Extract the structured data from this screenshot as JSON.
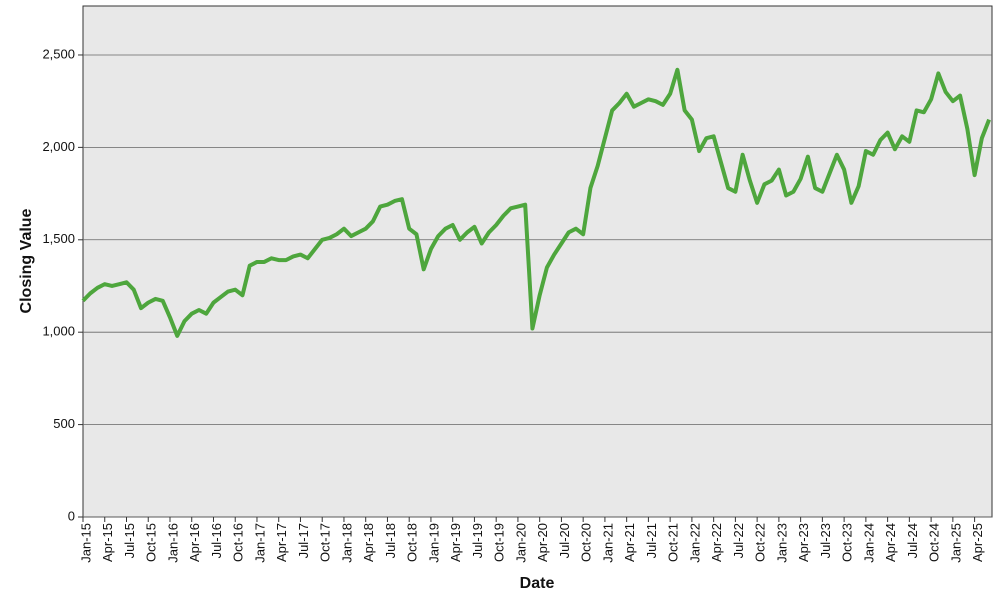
{
  "chart_data": {
    "type": "line",
    "x_label": "Date",
    "y_label": "Closing Value",
    "color": "#4ea63d",
    "grid": true,
    "ylim": [
      0,
      2765
    ],
    "yticks": [
      0,
      500,
      {
        "value": 1000,
        "label": "1,000"
      },
      {
        "value": 1500,
        "label": "1,500"
      },
      {
        "value": 2000,
        "label": "2,000"
      },
      {
        "value": 2500,
        "label": "2,500"
      }
    ],
    "categories": [
      "Jan-15",
      null,
      null,
      "Apr-15",
      null,
      null,
      "Jul-15",
      null,
      null,
      "Oct-15",
      null,
      null,
      "Jan-16",
      null,
      null,
      "Apr-16",
      null,
      null,
      "Jul-16",
      null,
      null,
      "Oct-16",
      null,
      null,
      "Jan-17",
      null,
      null,
      "Apr-17",
      null,
      null,
      "Jul-17",
      null,
      null,
      "Oct-17",
      null,
      null,
      "Jan-18",
      null,
      null,
      "Apr-18",
      null,
      null,
      "Jul-18",
      null,
      null,
      "Oct-18",
      null,
      null,
      "Jan-19",
      null,
      null,
      "Apr-19",
      null,
      null,
      "Jul-19",
      null,
      null,
      "Oct-19",
      null,
      null,
      "Jan-20",
      null,
      null,
      "Apr-20",
      null,
      null,
      "Jul-20",
      null,
      null,
      "Oct-20",
      null,
      null,
      "Jan-21",
      null,
      null,
      "Apr-21",
      null,
      null,
      "Jul-21",
      null,
      null,
      "Oct-21",
      null,
      null,
      "Jan-22",
      null,
      null,
      "Apr-22",
      null,
      null,
      "Jul-22",
      null,
      null,
      "Oct-22",
      null,
      null,
      "Jan-23",
      null,
      null,
      "Apr-23",
      null,
      null,
      "Jul-23",
      null,
      null,
      "Oct-23",
      null,
      null,
      "Jan-24",
      null,
      null,
      "Apr-24",
      null,
      null,
      "Jul-24",
      null,
      null,
      "Oct-24",
      null,
      null,
      "Jan-25",
      null,
      null,
      "Apr-25",
      null,
      null
    ],
    "values": [
      1170,
      1210,
      1240,
      1260,
      1250,
      1260,
      1270,
      1230,
      1130,
      1160,
      1180,
      1170,
      1080,
      980,
      1060,
      1100,
      1120,
      1100,
      1160,
      1190,
      1220,
      1230,
      1200,
      1360,
      1380,
      1380,
      1400,
      1390,
      1390,
      1410,
      1420,
      1400,
      1450,
      1500,
      1510,
      1530,
      1560,
      1520,
      1540,
      1560,
      1600,
      1680,
      1690,
      1710,
      1720,
      1560,
      1530,
      1340,
      1450,
      1520,
      1560,
      1580,
      1500,
      1540,
      1570,
      1480,
      1540,
      1580,
      1630,
      1670,
      1680,
      1690,
      1020,
      1200,
      1350,
      1420,
      1480,
      1540,
      1560,
      1530,
      1780,
      1900,
      2050,
      2200,
      2240,
      2290,
      2220,
      2240,
      2260,
      2250,
      2230,
      2290,
      2420,
      2200,
      2150,
      1980,
      2050,
      2060,
      1920,
      1780,
      1760,
      1960,
      1820,
      1700,
      1800,
      1820,
      1880,
      1740,
      1760,
      1830,
      1950,
      1780,
      1760,
      1860,
      1960,
      1880,
      1700,
      1790,
      1980,
      1960,
      2040,
      2080,
      1990,
      2060,
      2030,
      2200,
      2190,
      2260,
      2400,
      2300,
      2250,
      2280,
      2100,
      1850,
      2050,
      2150
    ]
  }
}
